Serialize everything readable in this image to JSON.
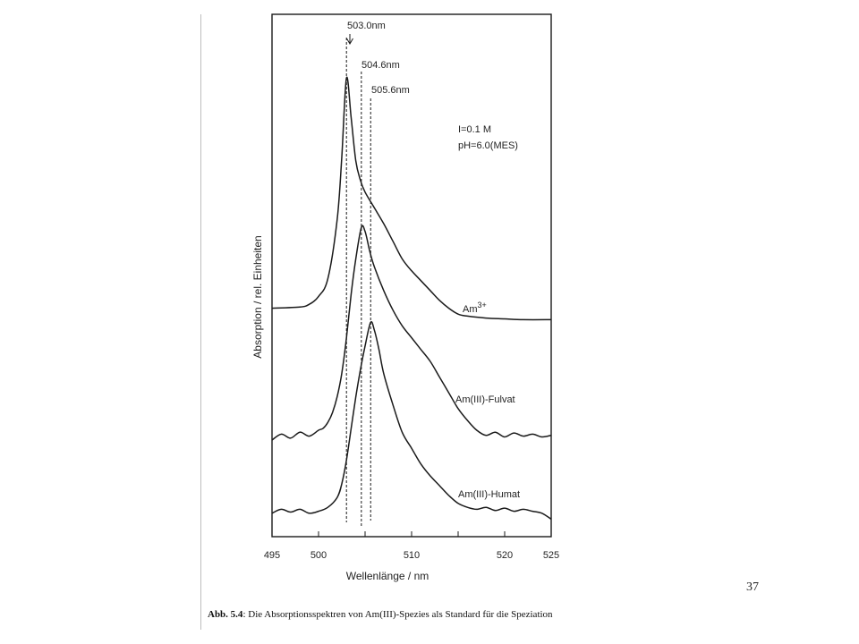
{
  "page": {
    "page_number": "37"
  },
  "caption": {
    "label": "Abb. 5.4",
    "text": ": Die Absorptionsspektren von Am(III)-Spezies als Standard für die Speziation"
  },
  "chart_data": {
    "type": "line",
    "title": "",
    "xlabel": "Wellenlänge / nm",
    "ylabel": "Absorption / rel. Einheiten",
    "xlim": [
      495,
      525
    ],
    "xticks": [
      495,
      500,
      505,
      510,
      515,
      520,
      525
    ],
    "xtick_labels": [
      "495",
      "500",
      "",
      "510",
      "",
      "520",
      "525"
    ],
    "conditions": [
      "I=0.1 M",
      "pH=6.0(MES)"
    ],
    "grid": false,
    "legend": "none",
    "peak_markers": [
      {
        "label": "503.0nm",
        "x": 503.0
      },
      {
        "label": "504.6nm",
        "x": 504.6
      },
      {
        "label": "505.6nm",
        "x": 505.6
      }
    ],
    "series": [
      {
        "name": "Am3+",
        "label_base": "Am",
        "label_sup": "3+",
        "peak_x": 503.0,
        "x": [
          495,
          498,
          499,
          500,
          501,
          502,
          502.5,
          503,
          503.5,
          504,
          504.5,
          505,
          506,
          507,
          508,
          509,
          510,
          511,
          512,
          513,
          514,
          515,
          516,
          518,
          520,
          522,
          525
        ],
        "y": [
          0.035,
          0.038,
          0.045,
          0.065,
          0.11,
          0.26,
          0.42,
          0.62,
          0.52,
          0.41,
          0.36,
          0.33,
          0.29,
          0.25,
          0.205,
          0.16,
          0.13,
          0.105,
          0.08,
          0.055,
          0.035,
          0.02,
          0.015,
          0.01,
          0.008,
          0.006,
          0.006
        ]
      },
      {
        "name": "Am(III)-Fulvat",
        "peak_x": 504.6,
        "x": [
          495,
          496,
          497,
          498,
          499,
          500,
          500.5,
          501,
          501.5,
          502,
          502.5,
          503,
          503.5,
          504,
          504.6,
          505,
          505.5,
          506,
          507,
          508,
          509,
          510,
          511,
          512,
          513,
          514,
          515,
          516,
          517,
          518,
          519,
          520,
          521,
          522,
          523,
          524,
          525
        ],
        "y": [
          0.0,
          0.015,
          0.005,
          0.02,
          0.01,
          0.025,
          0.03,
          0.045,
          0.07,
          0.11,
          0.17,
          0.26,
          0.37,
          0.46,
          0.54,
          0.53,
          0.48,
          0.44,
          0.38,
          0.33,
          0.29,
          0.26,
          0.23,
          0.2,
          0.16,
          0.12,
          0.08,
          0.05,
          0.025,
          0.012,
          0.02,
          0.008,
          0.018,
          0.01,
          0.015,
          0.008,
          0.012
        ]
      },
      {
        "name": "Am(III)-Humat",
        "peak_x": 505.6,
        "x": [
          495,
          496,
          497,
          498,
          499,
          500,
          501,
          502,
          502.5,
          503,
          503.5,
          504,
          504.5,
          505,
          505.6,
          506,
          506.5,
          507,
          508,
          509,
          510,
          511,
          512,
          513,
          514,
          515,
          516,
          517,
          518,
          519,
          520,
          521,
          522,
          523,
          524,
          525
        ],
        "y": [
          0.005,
          0.015,
          0.008,
          0.015,
          0.005,
          0.01,
          0.02,
          0.045,
          0.08,
          0.14,
          0.22,
          0.3,
          0.37,
          0.43,
          0.49,
          0.47,
          0.42,
          0.36,
          0.28,
          0.21,
          0.17,
          0.13,
          0.1,
          0.075,
          0.05,
          0.03,
          0.02,
          0.015,
          0.02,
          0.012,
          0.018,
          0.01,
          0.015,
          0.01,
          0.005,
          -0.01
        ]
      }
    ]
  }
}
